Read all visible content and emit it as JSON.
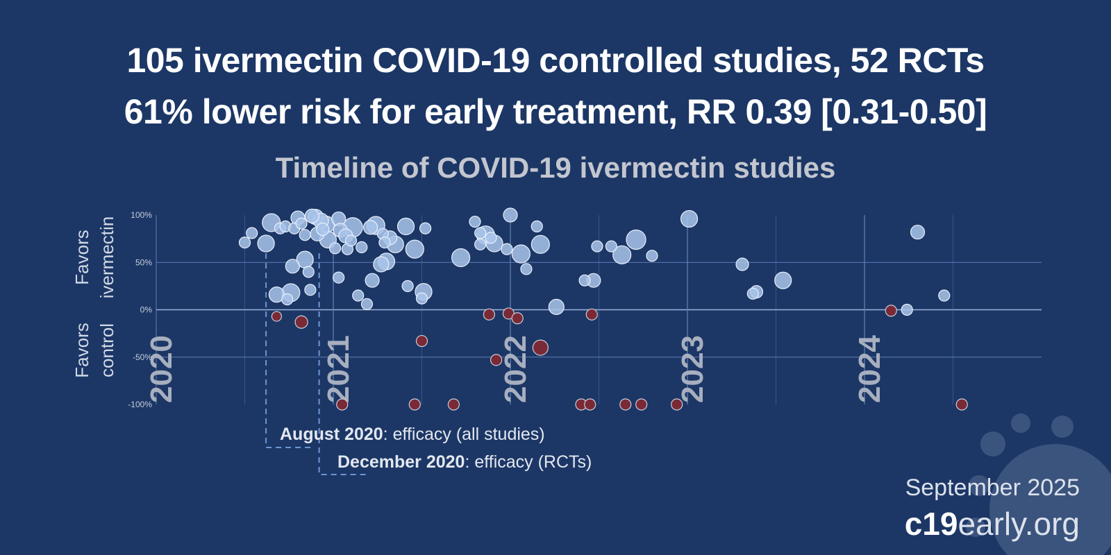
{
  "header": {
    "line1": "105 ivermectin COVID-19 controlled studies, 52 RCTs",
    "line2": "61% lower risk for early treatment, RR 0.39 [0.31-0.50]"
  },
  "footer": {
    "date": "September 2025",
    "brand_bold": "c19",
    "brand_rest": "early.org"
  },
  "colors": {
    "background": "#1c3766",
    "positive_point": "#a9c4ea",
    "negative_point": "#7a2a36",
    "grid": "#5f7fb3",
    "year_label": "#a7afbf"
  },
  "chart_data": {
    "type": "scatter",
    "title": "Timeline of COVID-19 ivermectin studies",
    "y_group_labels": [
      {
        "line1": "Favors",
        "line2": "ivermectin"
      },
      {
        "line1": "Favors",
        "line2": "control"
      }
    ],
    "y_ticks": [
      "100%",
      "50%",
      "0%",
      "-50%",
      "-100%"
    ],
    "ylim": [
      -100,
      100
    ],
    "xlim": [
      2020.0,
      2025.0
    ],
    "x_year_labels": [
      {
        "label": "2020",
        "x": 2020.0
      },
      {
        "label": "2021",
        "x": 2021.0
      },
      {
        "label": "2022",
        "x": 2022.0
      },
      {
        "label": "2023",
        "x": 2023.0
      },
      {
        "label": "2024",
        "x": 2024.0
      }
    ],
    "annotations": [
      {
        "bold": "August 2020",
        "text": ": efficacy (all studies)",
        "x": 2020.62
      },
      {
        "bold": "December 2020",
        "text": ": efficacy (RCTs)",
        "x": 2020.92
      }
    ],
    "points": [
      {
        "x": 2020.5,
        "y": 71,
        "s": 8
      },
      {
        "x": 2020.54,
        "y": 81,
        "s": 8
      },
      {
        "x": 2020.62,
        "y": 70,
        "s": 12
      },
      {
        "x": 2020.65,
        "y": 92,
        "s": 13
      },
      {
        "x": 2020.68,
        "y": -7,
        "s": 7
      },
      {
        "x": 2020.68,
        "y": 16,
        "s": 11
      },
      {
        "x": 2020.7,
        "y": 86,
        "s": 8
      },
      {
        "x": 2020.73,
        "y": 88,
        "s": 8
      },
      {
        "x": 2020.74,
        "y": 11,
        "s": 8
      },
      {
        "x": 2020.76,
        "y": 18,
        "s": 13
      },
      {
        "x": 2020.77,
        "y": 46,
        "s": 10
      },
      {
        "x": 2020.78,
        "y": 86,
        "s": 8
      },
      {
        "x": 2020.8,
        "y": 97,
        "s": 10
      },
      {
        "x": 2020.82,
        "y": 91,
        "s": 8
      },
      {
        "x": 2020.82,
        "y": -13,
        "s": 9
      },
      {
        "x": 2020.84,
        "y": 53,
        "s": 12
      },
      {
        "x": 2020.84,
        "y": 79,
        "s": 8
      },
      {
        "x": 2020.86,
        "y": 40,
        "s": 8
      },
      {
        "x": 2020.87,
        "y": 21,
        "s": 8
      },
      {
        "x": 2020.88,
        "y": 99,
        "s": 10
      },
      {
        "x": 2020.9,
        "y": 98,
        "s": 11
      },
      {
        "x": 2020.91,
        "y": 80,
        "s": 10
      },
      {
        "x": 2020.93,
        "y": 94,
        "s": 11
      },
      {
        "x": 2020.94,
        "y": 85,
        "s": 9
      },
      {
        "x": 2020.96,
        "y": 90,
        "s": 12
      },
      {
        "x": 2020.97,
        "y": 74,
        "s": 12
      },
      {
        "x": 2021.01,
        "y": 65,
        "s": 8
      },
      {
        "x": 2021.03,
        "y": 96,
        "s": 10
      },
      {
        "x": 2021.03,
        "y": 34,
        "s": 8
      },
      {
        "x": 2021.04,
        "y": 84,
        "s": 10
      },
      {
        "x": 2021.05,
        "y": -100,
        "s": 8
      },
      {
        "x": 2021.07,
        "y": 78,
        "s": 10
      },
      {
        "x": 2021.08,
        "y": 64,
        "s": 8
      },
      {
        "x": 2021.1,
        "y": 73,
        "s": 8
      },
      {
        "x": 2021.11,
        "y": 87,
        "s": 14
      },
      {
        "x": 2021.14,
        "y": 15,
        "s": 8
      },
      {
        "x": 2021.16,
        "y": 66,
        "s": 8
      },
      {
        "x": 2021.19,
        "y": 6,
        "s": 8
      },
      {
        "x": 2021.21,
        "y": 87,
        "s": 10
      },
      {
        "x": 2021.22,
        "y": 31,
        "s": 10
      },
      {
        "x": 2021.24,
        "y": 89,
        "s": 13
      },
      {
        "x": 2021.27,
        "y": 48,
        "s": 11
      },
      {
        "x": 2021.28,
        "y": 80,
        "s": 8
      },
      {
        "x": 2021.29,
        "y": 71,
        "s": 8
      },
      {
        "x": 2021.3,
        "y": 51,
        "s": 12
      },
      {
        "x": 2021.32,
        "y": 76,
        "s": 10
      },
      {
        "x": 2021.35,
        "y": 69,
        "s": 12
      },
      {
        "x": 2021.41,
        "y": 88,
        "s": 12
      },
      {
        "x": 2021.42,
        "y": 25,
        "s": 8
      },
      {
        "x": 2021.46,
        "y": 64,
        "s": 13
      },
      {
        "x": 2021.46,
        "y": -100,
        "s": 8
      },
      {
        "x": 2021.5,
        "y": 12,
        "s": 8
      },
      {
        "x": 2021.5,
        "y": -33,
        "s": 8
      },
      {
        "x": 2021.51,
        "y": 19,
        "s": 12
      },
      {
        "x": 2021.52,
        "y": 86,
        "s": 8
      },
      {
        "x": 2021.68,
        "y": -100,
        "s": 8
      },
      {
        "x": 2021.72,
        "y": 55,
        "s": 13
      },
      {
        "x": 2021.8,
        "y": 93,
        "s": 8
      },
      {
        "x": 2021.83,
        "y": 81,
        "s": 8
      },
      {
        "x": 2021.83,
        "y": 69,
        "s": 8
      },
      {
        "x": 2021.86,
        "y": 79,
        "s": 13
      },
      {
        "x": 2021.88,
        "y": -5,
        "s": 8
      },
      {
        "x": 2021.89,
        "y": 76,
        "s": 8
      },
      {
        "x": 2021.91,
        "y": 70,
        "s": 12
      },
      {
        "x": 2021.92,
        "y": -53,
        "s": 8
      },
      {
        "x": 2021.98,
        "y": 64,
        "s": 8
      },
      {
        "x": 2021.99,
        "y": -4,
        "s": 8
      },
      {
        "x": 2022.0,
        "y": 100,
        "s": 10
      },
      {
        "x": 2022.04,
        "y": -9,
        "s": 8
      },
      {
        "x": 2022.06,
        "y": 59,
        "s": 13
      },
      {
        "x": 2022.09,
        "y": 43,
        "s": 8
      },
      {
        "x": 2022.15,
        "y": 88,
        "s": 8
      },
      {
        "x": 2022.17,
        "y": -40,
        "s": 11
      },
      {
        "x": 2022.17,
        "y": 69,
        "s": 13
      },
      {
        "x": 2022.26,
        "y": 3,
        "s": 11
      },
      {
        "x": 2022.4,
        "y": -100,
        "s": 8
      },
      {
        "x": 2022.42,
        "y": 31,
        "s": 8
      },
      {
        "x": 2022.45,
        "y": -100,
        "s": 8
      },
      {
        "x": 2022.46,
        "y": -5,
        "s": 8
      },
      {
        "x": 2022.47,
        "y": 31,
        "s": 10
      },
      {
        "x": 2022.49,
        "y": 67,
        "s": 8
      },
      {
        "x": 2022.57,
        "y": 67,
        "s": 8
      },
      {
        "x": 2022.63,
        "y": 58,
        "s": 13
      },
      {
        "x": 2022.65,
        "y": -100,
        "s": 8
      },
      {
        "x": 2022.71,
        "y": 74,
        "s": 14
      },
      {
        "x": 2022.74,
        "y": -100,
        "s": 8
      },
      {
        "x": 2022.8,
        "y": 57,
        "s": 8
      },
      {
        "x": 2022.94,
        "y": -100,
        "s": 8
      },
      {
        "x": 2023.01,
        "y": 96,
        "s": 12
      },
      {
        "x": 2023.31,
        "y": 48,
        "s": 9
      },
      {
        "x": 2023.37,
        "y": 17,
        "s": 8
      },
      {
        "x": 2023.39,
        "y": 19,
        "s": 9
      },
      {
        "x": 2023.54,
        "y": 31,
        "s": 12
      },
      {
        "x": 2024.15,
        "y": -1,
        "s": 8
      },
      {
        "x": 2024.24,
        "y": 0,
        "s": 8
      },
      {
        "x": 2024.3,
        "y": 82,
        "s": 10
      },
      {
        "x": 2024.45,
        "y": 15,
        "s": 8
      },
      {
        "x": 2024.55,
        "y": -100,
        "s": 8
      }
    ]
  }
}
